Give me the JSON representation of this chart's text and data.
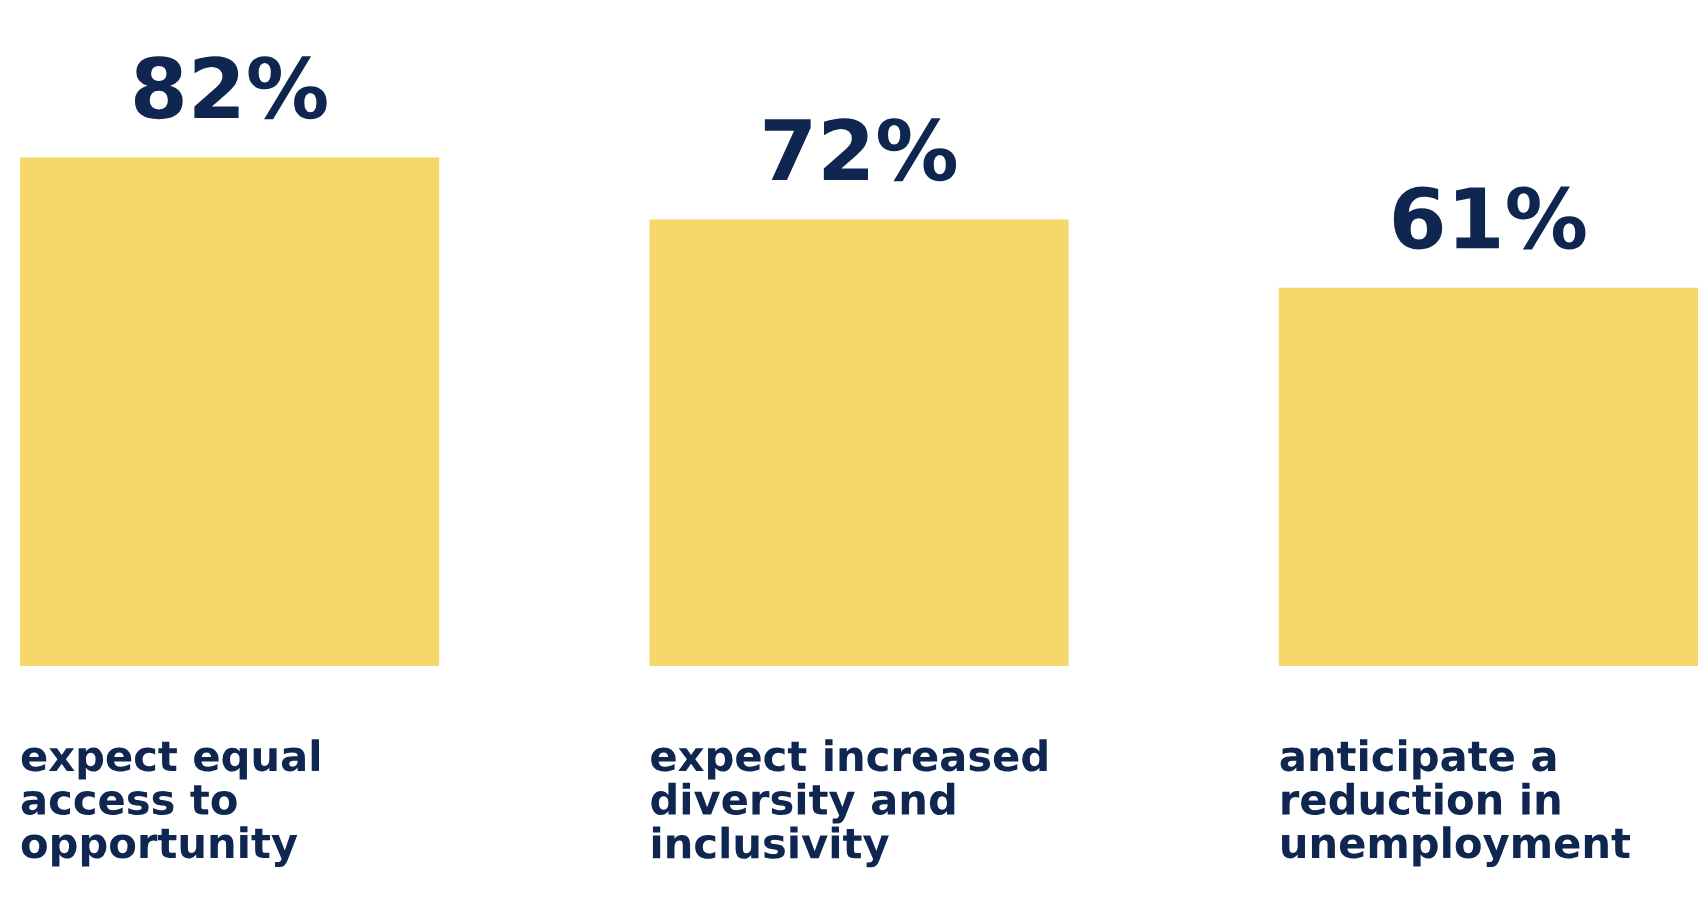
{
  "chart_data": {
    "type": "bar",
    "categories": [
      "expect equal access to opportunity",
      "expect increased diversity and inclusivity",
      "anticipate a reduction in unemployment"
    ],
    "values": [
      82,
      72,
      61
    ],
    "value_labels": [
      "82%",
      "72%",
      "61%"
    ],
    "color": "#f6d86a"
  }
}
